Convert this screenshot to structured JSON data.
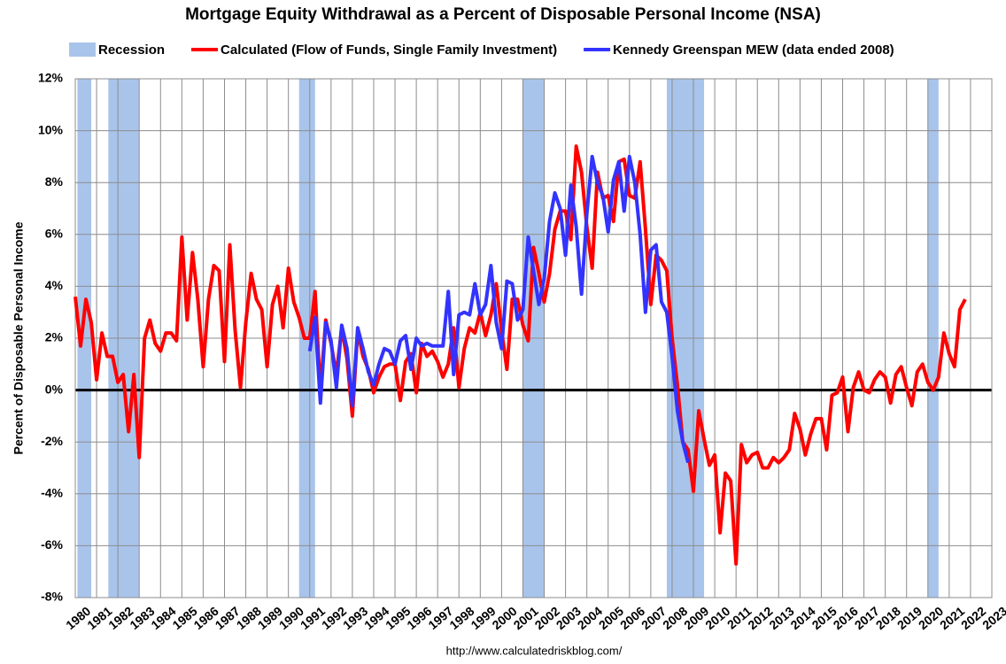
{
  "chart_data": {
    "type": "line",
    "title": "Mortgage Equity Withdrawal as a Percent of Disposable Personal Income (NSA)",
    "y_label": "Percent of Disposable Personal Income",
    "source": "http://www.calculatedriskblog.com/",
    "recession_label": "Recession",
    "recession_color": "#a9c4eb",
    "recessions": [
      {
        "start": 1980.1,
        "end": 1980.75
      },
      {
        "start": 1981.55,
        "end": 1983.0
      },
      {
        "start": 1990.5,
        "end": 1991.25
      },
      {
        "start": 2001.0,
        "end": 2002.0
      },
      {
        "start": 2007.75,
        "end": 2009.5
      },
      {
        "start": 2020.0,
        "end": 2020.5
      }
    ],
    "xlim": [
      1980,
      2023
    ],
    "xticks": [
      1980,
      1981,
      1982,
      1983,
      1984,
      1985,
      1986,
      1987,
      1988,
      1989,
      1990,
      1991,
      1992,
      1993,
      1994,
      1995,
      1996,
      1997,
      1998,
      1999,
      2000,
      2001,
      2002,
      2003,
      2004,
      2005,
      2006,
      2007,
      2008,
      2009,
      2010,
      2011,
      2012,
      2013,
      2014,
      2015,
      2016,
      2017,
      2018,
      2019,
      2020,
      2021,
      2022,
      2023
    ],
    "ylim": [
      -8,
      12
    ],
    "yticks": [
      {
        "value": -8,
        "label": "-8%"
      },
      {
        "value": -6,
        "label": "-6%"
      },
      {
        "value": -4,
        "label": "-4%"
      },
      {
        "value": -2,
        "label": "-2%"
      },
      {
        "value": 0,
        "label": "0%"
      },
      {
        "value": 2,
        "label": "2%"
      },
      {
        "value": 4,
        "label": "4%"
      },
      {
        "value": 6,
        "label": "6%"
      },
      {
        "value": 8,
        "label": "8%"
      },
      {
        "value": 10,
        "label": "10%"
      },
      {
        "value": 12,
        "label": "12%"
      }
    ],
    "grid": true,
    "series": [
      {
        "name": "Calculated (Flow of Funds, Single Family Investment)",
        "color": "#ff0000",
        "x": [
          1980,
          1980.25,
          1980.5,
          1980.75,
          1981,
          1981.25,
          1981.5,
          1981.75,
          1982,
          1982.25,
          1982.5,
          1982.75,
          1983,
          1983.25,
          1983.5,
          1983.75,
          1984,
          1984.25,
          1984.5,
          1984.75,
          1985,
          1985.25,
          1985.5,
          1985.75,
          1986,
          1986.25,
          1986.5,
          1986.75,
          1987,
          1987.25,
          1987.5,
          1987.75,
          1988,
          1988.25,
          1988.5,
          1988.75,
          1989,
          1989.25,
          1989.5,
          1989.75,
          1990,
          1990.25,
          1990.5,
          1990.75,
          1991,
          1991.25,
          1991.5,
          1991.75,
          1992,
          1992.25,
          1992.5,
          1992.75,
          1993,
          1993.25,
          1993.5,
          1993.75,
          1994,
          1994.25,
          1994.5,
          1994.75,
          1995,
          1995.25,
          1995.5,
          1995.75,
          1996,
          1996.25,
          1996.5,
          1996.75,
          1997,
          1997.25,
          1997.5,
          1997.75,
          1998,
          1998.25,
          1998.5,
          1998.75,
          1999,
          1999.25,
          1999.5,
          1999.75,
          2000,
          2000.25,
          2000.5,
          2000.75,
          2001,
          2001.25,
          2001.5,
          2001.75,
          2002,
          2002.25,
          2002.5,
          2002.75,
          2003,
          2003.25,
          2003.5,
          2003.75,
          2004,
          2004.25,
          2004.5,
          2004.75,
          2005,
          2005.25,
          2005.5,
          2005.75,
          2006,
          2006.25,
          2006.5,
          2006.75,
          2007,
          2007.25,
          2007.5,
          2007.75,
          2008,
          2008.25,
          2008.5,
          2008.75,
          2009,
          2009.25,
          2009.5,
          2009.75,
          2010,
          2010.25,
          2010.5,
          2010.75,
          2011,
          2011.25,
          2011.5,
          2011.75,
          2012,
          2012.25,
          2012.5,
          2012.75,
          2013,
          2013.25,
          2013.5,
          2013.75,
          2014,
          2014.25,
          2014.5,
          2014.75,
          2015,
          2015.25,
          2015.5,
          2015.75,
          2016,
          2016.25,
          2016.5,
          2016.75,
          2017,
          2017.25,
          2017.5,
          2017.75,
          2018,
          2018.25,
          2018.5,
          2018.75,
          2019,
          2019.25,
          2019.5,
          2019.75,
          2020,
          2020.25,
          2020.5,
          2020.75,
          2021,
          2021.25,
          2021.5,
          2021.75
        ],
        "values": [
          3.6,
          1.7,
          3.5,
          2.6,
          0.4,
          2.2,
          1.3,
          1.3,
          0.3,
          0.6,
          -1.6,
          0.6,
          -2.6,
          2.0,
          2.7,
          1.8,
          1.5,
          2.2,
          2.2,
          1.9,
          5.9,
          2.7,
          5.3,
          3.5,
          0.9,
          3.5,
          4.8,
          4.6,
          1.1,
          5.6,
          2.3,
          0.1,
          2.6,
          4.5,
          3.5,
          3.1,
          0.9,
          3.3,
          4.0,
          2.4,
          4.7,
          3.4,
          2.8,
          2.0,
          2.0,
          3.8,
          -0.1,
          2.7,
          1.8,
          0.6,
          2.4,
          1.2,
          -1.0,
          2.3,
          1.3,
          0.8,
          -0.1,
          0.5,
          0.9,
          1.0,
          1.0,
          -0.4,
          1.1,
          1.4,
          -0.1,
          1.8,
          1.3,
          1.5,
          1.1,
          0.5,
          1.0,
          2.4,
          0.1,
          1.6,
          2.4,
          2.2,
          3.0,
          2.1,
          2.9,
          4.1,
          2.3,
          0.8,
          3.5,
          3.5,
          2.5,
          1.9,
          5.5,
          4.5,
          3.4,
          4.5,
          6.2,
          6.9,
          6.9,
          5.8,
          9.4,
          8.4,
          6.3,
          4.7,
          8.4,
          7.4,
          7.5,
          6.5,
          8.8,
          8.9,
          7.5,
          7.4,
          8.8,
          6.2,
          3.3,
          5.2,
          5.0,
          4.6,
          2.0,
          0.2,
          -2.0,
          -2.3,
          -3.9,
          -0.8,
          -1.9,
          -2.9,
          -2.5,
          -5.5,
          -3.2,
          -3.5,
          -6.7,
          -2.1,
          -2.8,
          -2.5,
          -2.4,
          -3.0,
          -3.0,
          -2.6,
          -2.8,
          -2.6,
          -2.3,
          -0.9,
          -1.5,
          -2.5,
          -1.7,
          -1.1,
          -1.1,
          -2.3,
          -0.2,
          -0.1,
          0.5,
          -1.6,
          0.1,
          0.7,
          0.0,
          -0.1,
          0.4,
          0.7,
          0.5,
          -0.5,
          0.6,
          0.9,
          0.1,
          -0.6,
          0.7,
          1.0,
          0.3,
          0.0,
          0.5,
          2.2,
          1.4,
          0.9,
          3.1,
          3.5
        ]
      },
      {
        "name": "Kennedy Greenspan MEW (data ended 2008)",
        "color": "#3333ff",
        "x": [
          1991,
          1991.25,
          1991.5,
          1991.75,
          1992,
          1992.25,
          1992.5,
          1992.75,
          1993,
          1993.25,
          1993.5,
          1993.75,
          1994,
          1994.25,
          1994.5,
          1994.75,
          1995,
          1995.25,
          1995.5,
          1995.75,
          1996,
          1996.25,
          1996.5,
          1996.75,
          1997,
          1997.25,
          1997.5,
          1997.75,
          1998,
          1998.25,
          1998.5,
          1998.75,
          1999,
          1999.25,
          1999.5,
          1999.75,
          2000,
          2000.25,
          2000.5,
          2000.75,
          2001,
          2001.25,
          2001.5,
          2001.75,
          2002,
          2002.25,
          2002.5,
          2002.75,
          2003,
          2003.25,
          2003.5,
          2003.75,
          2004,
          2004.25,
          2004.5,
          2004.75,
          2005,
          2005.25,
          2005.5,
          2005.75,
          2006,
          2006.25,
          2006.5,
          2006.75,
          2007,
          2007.25,
          2007.5,
          2007.75,
          2008,
          2008.25,
          2008.5,
          2008.75
        ],
        "values": [
          1.5,
          2.8,
          -0.5,
          2.6,
          1.9,
          0.1,
          2.5,
          1.6,
          -0.6,
          2.4,
          1.6,
          0.7,
          0.2,
          1.0,
          1.6,
          1.5,
          1.0,
          1.9,
          2.1,
          0.8,
          2.0,
          1.7,
          1.8,
          1.7,
          1.7,
          1.7,
          3.8,
          0.6,
          2.9,
          3.0,
          2.9,
          4.1,
          2.9,
          3.3,
          4.8,
          2.6,
          1.6,
          4.2,
          4.1,
          2.7,
          3.1,
          5.9,
          4.6,
          3.3,
          4.3,
          6.5,
          7.6,
          7.0,
          5.2,
          7.9,
          6.3,
          3.7,
          6.8,
          9.0,
          8.0,
          7.5,
          6.1,
          8.1,
          8.8,
          6.9,
          9.0,
          8.0,
          6.0,
          3.0,
          5.4,
          5.6,
          3.4,
          3.0,
          1.3,
          -0.8,
          -2.0,
          -2.8
        ]
      }
    ]
  }
}
